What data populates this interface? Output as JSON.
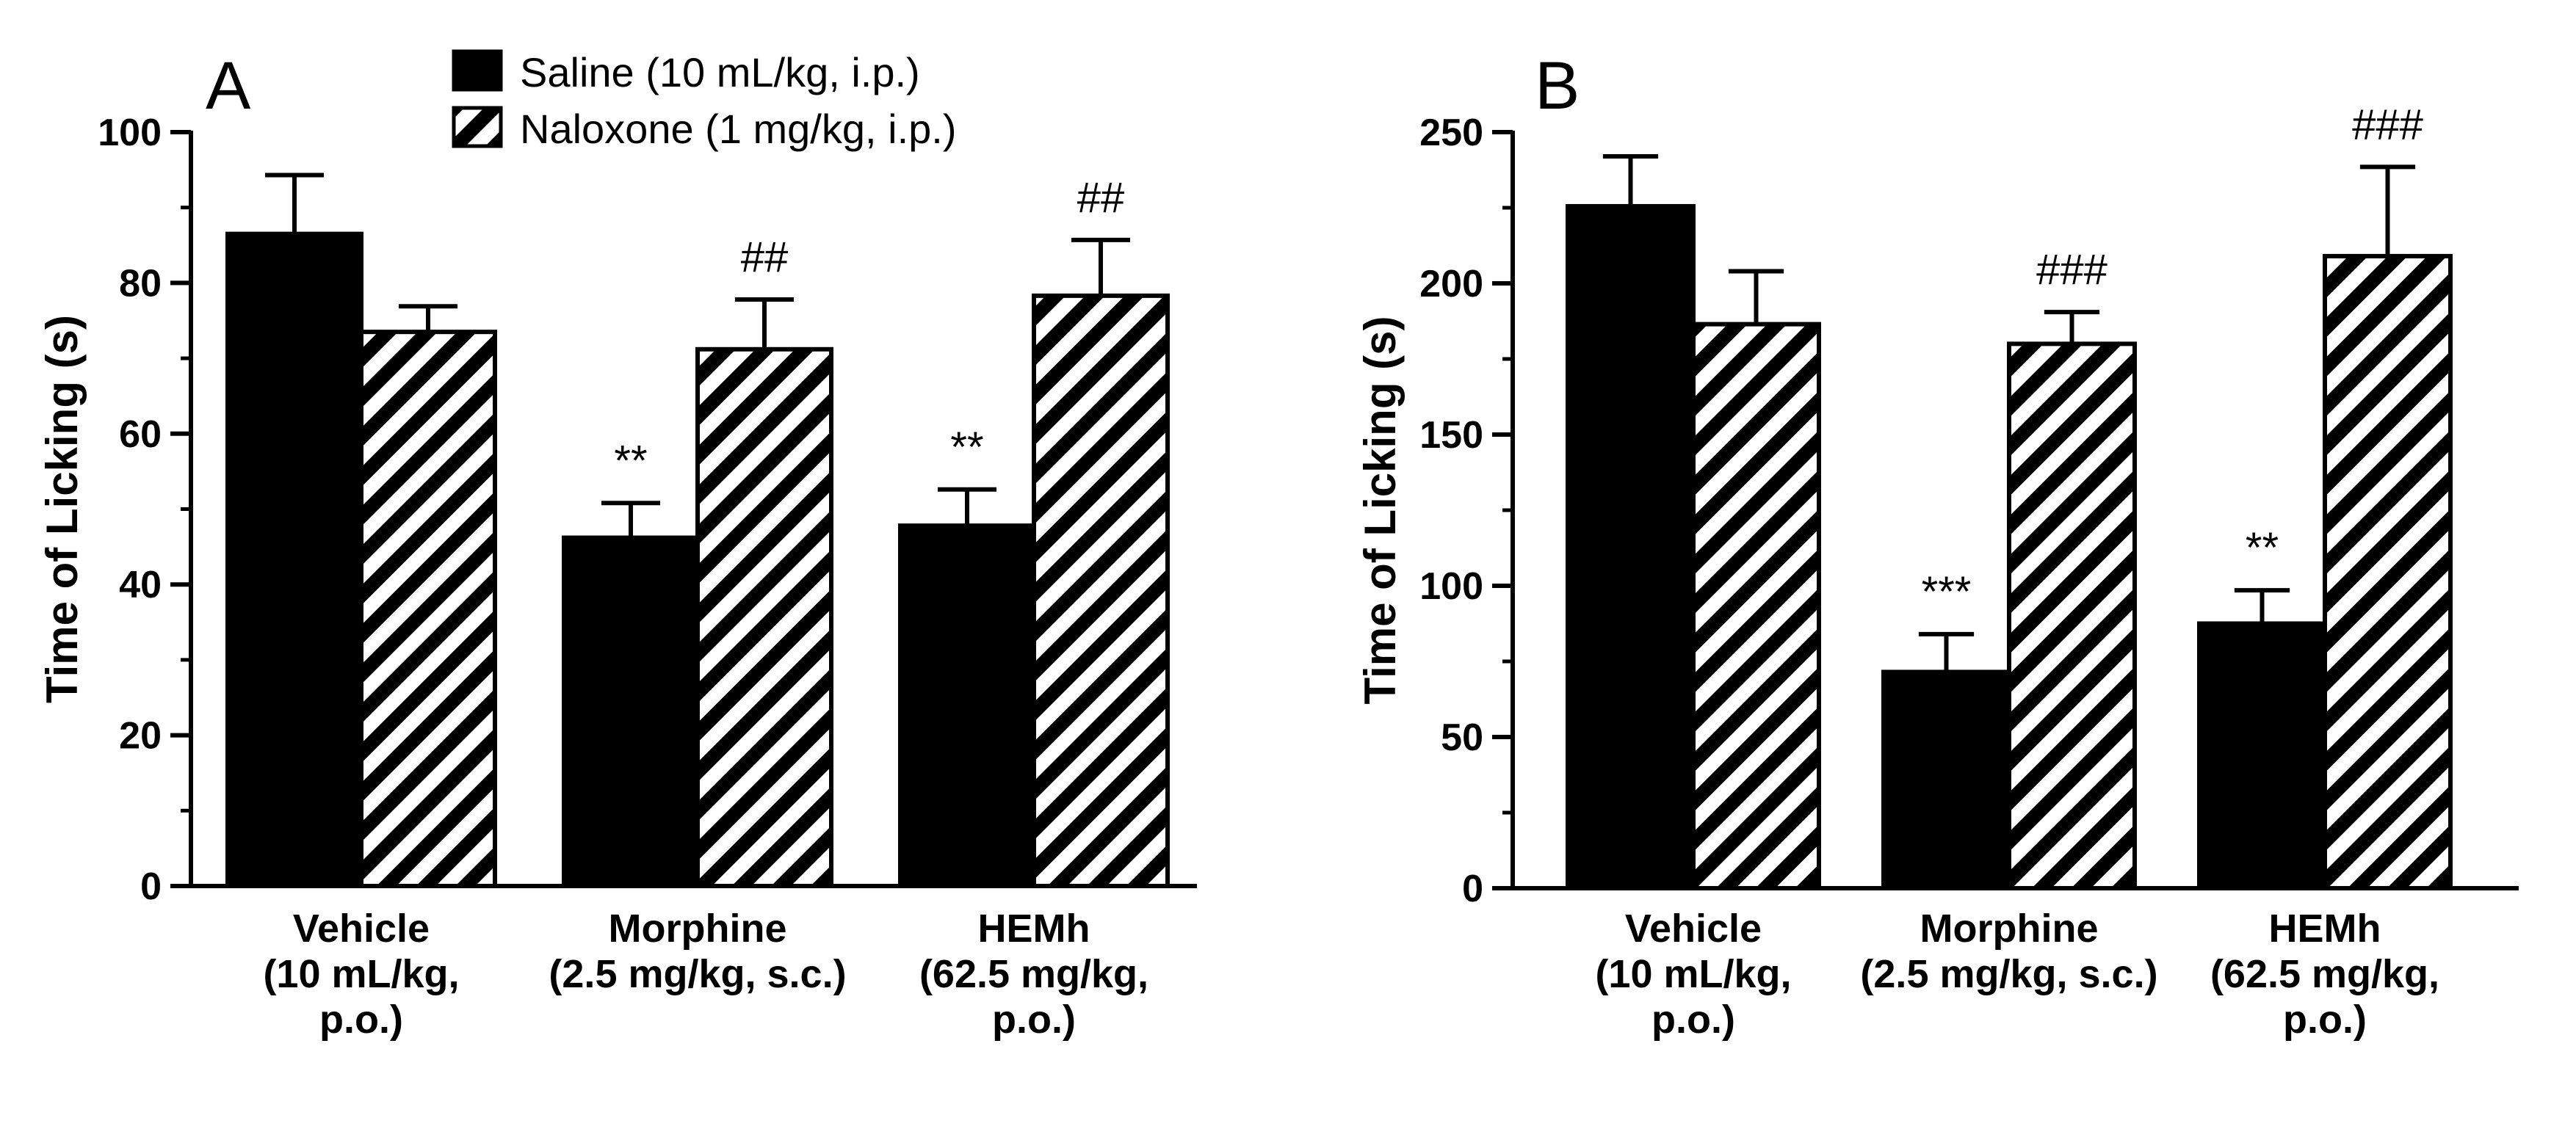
{
  "legend": {
    "items": [
      {
        "label": "Saline (10 mL/kg, i.p.)",
        "pattern": "solid"
      },
      {
        "label": "Naloxone (1 mg/kg, i.p.)",
        "pattern": "hatched"
      }
    ],
    "placement": "top-center of panel A"
  },
  "colors": {
    "saline": "#000000",
    "naloxone_hatch": "#000000",
    "background": "#ffffff"
  },
  "chart_data": [
    {
      "type": "bar",
      "panel_label": "A",
      "ylabel": "Time of Licking (s)",
      "ylim": [
        0,
        100
      ],
      "yticks": [
        0,
        20,
        40,
        60,
        80,
        100
      ],
      "minor_step": 10,
      "categories": [
        {
          "lines": [
            "Vehicle",
            "(10 mL/kg,",
            "p.o.)"
          ]
        },
        {
          "lines": [
            "Morphine",
            "(2.5 mg/kg, s.c.)"
          ]
        },
        {
          "lines": [
            "HEMh",
            "(62.5 mg/kg,",
            "p.o.)"
          ]
        }
      ],
      "series": [
        {
          "name": "Saline (10 mL/kg, i.p.)",
          "pattern": "solid",
          "values": [
            86.5,
            46.2,
            47.8
          ],
          "errors": [
            7.8,
            4.6,
            4.8
          ],
          "annotations": [
            "",
            "**",
            "**"
          ]
        },
        {
          "name": "Naloxone (1 mg/kg, i.p.)",
          "pattern": "hatched",
          "values": [
            73.5,
            71.2,
            78.3
          ],
          "errors": [
            3.4,
            6.6,
            7.4
          ],
          "annotations": [
            "",
            "##",
            "##"
          ]
        }
      ]
    },
    {
      "type": "bar",
      "panel_label": "B",
      "ylabel": "Time of Licking (s)",
      "ylim": [
        0,
        250
      ],
      "yticks": [
        0,
        50,
        100,
        150,
        200,
        250
      ],
      "minor_step": 25,
      "categories": [
        {
          "lines": [
            "Vehicle",
            "(10 mL/kg,",
            "p.o.)"
          ]
        },
        {
          "lines": [
            "Morphine",
            "(2.5 mg/kg, s.c.)"
          ]
        },
        {
          "lines": [
            "HEMh",
            "(62.5 mg/kg,",
            "p.o.)"
          ]
        }
      ],
      "series": [
        {
          "name": "Saline (10 mL/kg, i.p.)",
          "pattern": "solid",
          "values": [
            225.5,
            71.5,
            87.5
          ],
          "errors": [
            16.5,
            12.5,
            11.0
          ],
          "annotations": [
            "",
            "***",
            "**"
          ]
        },
        {
          "name": "Naloxone (1 mg/kg, i.p.)",
          "pattern": "hatched",
          "values": [
            186.5,
            180.0,
            209.0
          ],
          "errors": [
            17.5,
            10.5,
            29.5
          ],
          "annotations": [
            "",
            "###",
            "###"
          ]
        }
      ]
    }
  ]
}
